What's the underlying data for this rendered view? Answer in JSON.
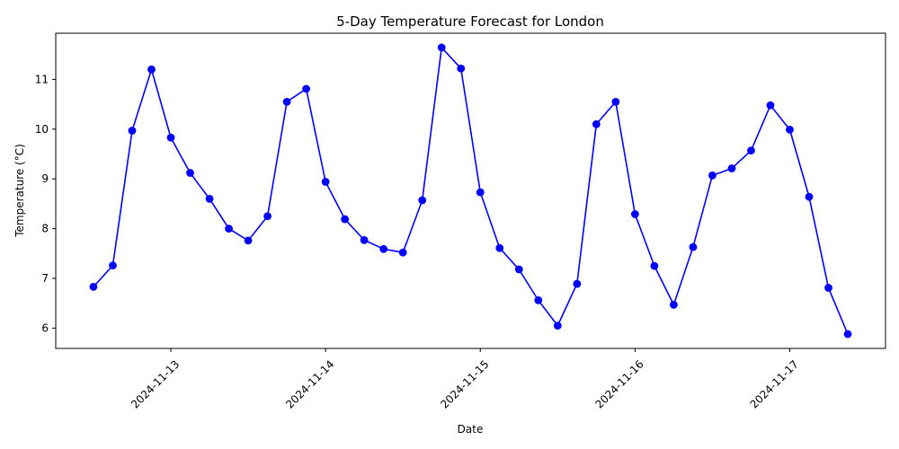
{
  "chart_data": {
    "type": "line",
    "title": "5-Day Temperature Forecast for London",
    "xlabel": "Date",
    "ylabel": "Temperature (°C)",
    "x_ticks": [
      "2024-11-13",
      "2024-11-14",
      "2024-11-15",
      "2024-11-16",
      "2024-11-17"
    ],
    "x_tick_rotation_deg": 45,
    "y_ticks": [
      6,
      7,
      8,
      9,
      10,
      11
    ],
    "x": [
      "2024-11-12 12:00",
      "2024-11-12 15:00",
      "2024-11-12 18:00",
      "2024-11-12 21:00",
      "2024-11-13 00:00",
      "2024-11-13 03:00",
      "2024-11-13 06:00",
      "2024-11-13 09:00",
      "2024-11-13 12:00",
      "2024-11-13 15:00",
      "2024-11-13 18:00",
      "2024-11-13 21:00",
      "2024-11-14 00:00",
      "2024-11-14 03:00",
      "2024-11-14 06:00",
      "2024-11-14 09:00",
      "2024-11-14 12:00",
      "2024-11-14 15:00",
      "2024-11-14 18:00",
      "2024-11-14 21:00",
      "2024-11-15 00:00",
      "2024-11-15 03:00",
      "2024-11-15 06:00",
      "2024-11-15 09:00",
      "2024-11-15 12:00",
      "2024-11-15 15:00",
      "2024-11-15 18:00",
      "2024-11-15 21:00",
      "2024-11-16 00:00",
      "2024-11-16 03:00",
      "2024-11-16 06:00",
      "2024-11-16 09:00",
      "2024-11-16 12:00",
      "2024-11-16 15:00",
      "2024-11-16 18:00",
      "2024-11-16 21:00",
      "2024-11-17 00:00",
      "2024-11-17 03:00",
      "2024-11-17 06:00",
      "2024-11-17 09:00"
    ],
    "series": [
      {
        "values": [
          6.83,
          7.26,
          9.97,
          11.2,
          9.83,
          9.12,
          8.6,
          8.0,
          7.76,
          8.25,
          10.55,
          10.81,
          8.94,
          8.19,
          7.77,
          7.59,
          7.52,
          8.57,
          11.64,
          11.22,
          8.73,
          7.61,
          7.18,
          6.56,
          6.05,
          6.89,
          10.1,
          10.55,
          8.29,
          7.25,
          6.47,
          7.63,
          9.07,
          9.21,
          9.57,
          10.48,
          9.99,
          8.64,
          6.81,
          5.88
        ],
        "color": "#0000ff",
        "marker": "circle"
      }
    ],
    "grid": false,
    "legend": false
  }
}
